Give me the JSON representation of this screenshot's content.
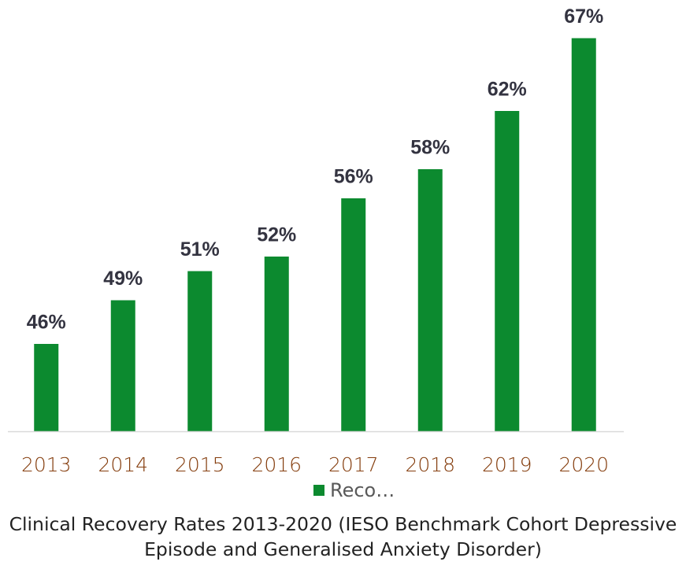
{
  "chart_data": {
    "type": "bar",
    "title": "Clinical Recovery Rates 2013-2020 (IESO Benchmark Cohort Depressive Episode and Generalised Anxiety Disorder)",
    "categories": [
      "2013",
      "2014",
      "2015",
      "2016",
      "2017",
      "2018",
      "2019",
      "2020"
    ],
    "series": [
      {
        "name": "Reco…",
        "color": "#0c8a2f",
        "values": [
          46,
          49,
          51,
          52,
          56,
          58,
          62,
          67
        ],
        "value_labels": [
          "46%",
          "49%",
          "51%",
          "52%",
          "56%",
          "58%",
          "62%",
          "67%"
        ]
      }
    ],
    "ylim": [
      40,
      68
    ]
  }
}
